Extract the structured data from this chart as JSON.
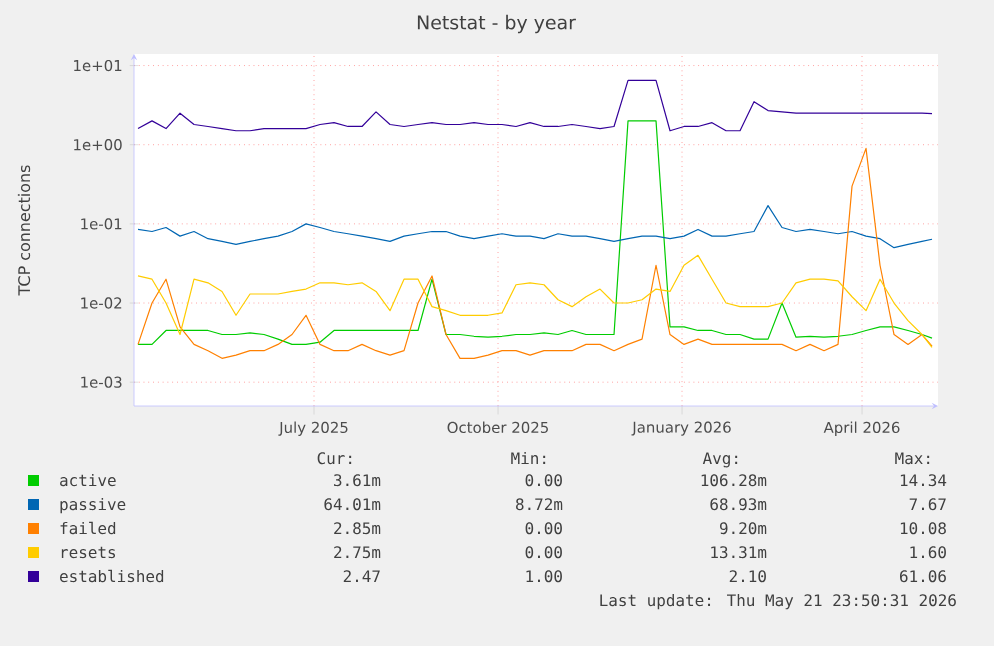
{
  "chart_data": {
    "type": "line",
    "title": "Netstat - by year",
    "ylabel": "TCP connections",
    "log": true,
    "grid": true,
    "legend": "bottom",
    "marker": "none",
    "line_style": "solid",
    "xlim": [
      "2025-04-17",
      "2026-05-24"
    ],
    "xticks": [
      {
        "value": "2025-07-16",
        "label": "July 2025"
      },
      {
        "value": "2025-10-16",
        "label": "October 2025"
      },
      {
        "value": "2026-01-16",
        "label": "January 2026"
      },
      {
        "value": "2026-04-16",
        "label": "April 2026"
      }
    ],
    "ylim": [
      0.0005,
      14
    ],
    "yticks": [
      {
        "value": 0.001,
        "label": "1e-03"
      },
      {
        "value": 0.01,
        "label": "1e-02"
      },
      {
        "value": 0.1,
        "label": "1e-01"
      },
      {
        "value": 1,
        "label": "1e+00"
      },
      {
        "value": 10,
        "label": "1e+01"
      }
    ],
    "x": [
      "2025-04-19",
      "2025-04-26",
      "2025-05-03",
      "2025-05-10",
      "2025-05-17",
      "2025-05-24",
      "2025-05-31",
      "2025-06-07",
      "2025-06-14",
      "2025-06-21",
      "2025-06-28",
      "2025-07-05",
      "2025-07-12",
      "2025-07-19",
      "2025-07-26",
      "2025-08-02",
      "2025-08-09",
      "2025-08-16",
      "2025-08-23",
      "2025-08-30",
      "2025-09-06",
      "2025-09-13",
      "2025-09-20",
      "2025-09-27",
      "2025-10-04",
      "2025-10-11",
      "2025-10-18",
      "2025-10-25",
      "2025-11-01",
      "2025-11-08",
      "2025-11-15",
      "2025-11-22",
      "2025-11-29",
      "2025-12-06",
      "2025-12-13",
      "2025-12-20",
      "2025-12-27",
      "2026-01-03",
      "2026-01-10",
      "2026-01-17",
      "2026-01-24",
      "2026-01-31",
      "2026-02-07",
      "2026-02-14",
      "2026-02-21",
      "2026-02-28",
      "2026-03-07",
      "2026-03-14",
      "2026-03-21",
      "2026-03-28",
      "2026-04-04",
      "2026-04-11",
      "2026-04-18",
      "2026-04-25",
      "2026-05-02",
      "2026-05-09",
      "2026-05-16",
      "2026-05-21"
    ],
    "series": [
      {
        "name": "active",
        "color": "#00cc00",
        "values": [
          0.003,
          0.003,
          0.0045,
          0.0045,
          0.0045,
          0.0045,
          0.004,
          0.004,
          0.0042,
          0.004,
          0.0035,
          0.003,
          0.003,
          0.0032,
          0.0045,
          0.0045,
          0.0045,
          0.0045,
          0.0045,
          0.0045,
          0.0045,
          0.02,
          0.004,
          0.004,
          0.0038,
          0.0037,
          0.0038,
          0.004,
          0.004,
          0.0042,
          0.004,
          0.0045,
          0.004,
          0.004,
          0.004,
          2.0,
          2.0,
          2.0,
          0.005,
          0.005,
          0.0045,
          0.0045,
          0.004,
          0.004,
          0.0035,
          0.0035,
          0.01,
          0.0037,
          0.0038,
          0.0037,
          0.0038,
          0.004,
          0.0045,
          0.005,
          0.005,
          0.0045,
          0.004,
          0.0036
        ]
      },
      {
        "name": "passive",
        "color": "#0066b3",
        "values": [
          0.085,
          0.08,
          0.09,
          0.07,
          0.08,
          0.065,
          0.06,
          0.055,
          0.06,
          0.065,
          0.07,
          0.08,
          0.1,
          0.09,
          0.08,
          0.075,
          0.07,
          0.065,
          0.06,
          0.07,
          0.075,
          0.08,
          0.08,
          0.07,
          0.065,
          0.07,
          0.075,
          0.07,
          0.07,
          0.065,
          0.075,
          0.07,
          0.07,
          0.065,
          0.06,
          0.065,
          0.07,
          0.07,
          0.065,
          0.07,
          0.085,
          0.07,
          0.07,
          0.075,
          0.08,
          0.17,
          0.09,
          0.08,
          0.085,
          0.08,
          0.075,
          0.08,
          0.07,
          0.065,
          0.05,
          0.055,
          0.06,
          0.064
        ]
      },
      {
        "name": "failed",
        "color": "#ff8000",
        "values": [
          0.003,
          0.01,
          0.02,
          0.005,
          0.003,
          0.0025,
          0.002,
          0.0022,
          0.0025,
          0.0025,
          0.003,
          0.004,
          0.007,
          0.003,
          0.0025,
          0.0025,
          0.003,
          0.0025,
          0.0022,
          0.0025,
          0.01,
          0.022,
          0.004,
          0.002,
          0.002,
          0.0022,
          0.0025,
          0.0025,
          0.0022,
          0.0025,
          0.0025,
          0.0025,
          0.003,
          0.003,
          0.0025,
          0.003,
          0.0035,
          0.03,
          0.004,
          0.003,
          0.0035,
          0.003,
          0.003,
          0.003,
          0.003,
          0.003,
          0.003,
          0.0025,
          0.003,
          0.0025,
          0.003,
          0.3,
          0.9,
          0.03,
          0.004,
          0.003,
          0.004,
          0.00285
        ]
      },
      {
        "name": "resets",
        "color": "#ffcc00",
        "values": [
          0.022,
          0.02,
          0.01,
          0.004,
          0.02,
          0.018,
          0.014,
          0.007,
          0.013,
          0.013,
          0.013,
          0.014,
          0.015,
          0.018,
          0.018,
          0.017,
          0.018,
          0.014,
          0.008,
          0.02,
          0.02,
          0.009,
          0.008,
          0.007,
          0.007,
          0.007,
          0.0075,
          0.017,
          0.018,
          0.017,
          0.011,
          0.009,
          0.012,
          0.015,
          0.01,
          0.01,
          0.011,
          0.015,
          0.014,
          0.03,
          0.04,
          0.02,
          0.01,
          0.009,
          0.009,
          0.009,
          0.01,
          0.018,
          0.02,
          0.02,
          0.019,
          0.012,
          0.008,
          0.02,
          0.01,
          0.006,
          0.004,
          0.00275
        ]
      },
      {
        "name": "established",
        "color": "#330099",
        "values": [
          1.6,
          2.0,
          1.6,
          2.5,
          1.8,
          1.7,
          1.6,
          1.5,
          1.5,
          1.6,
          1.6,
          1.6,
          1.6,
          1.8,
          1.9,
          1.7,
          1.7,
          2.6,
          1.8,
          1.7,
          1.8,
          1.9,
          1.8,
          1.8,
          1.9,
          1.8,
          1.8,
          1.7,
          1.9,
          1.7,
          1.7,
          1.8,
          1.7,
          1.6,
          1.7,
          6.5,
          6.5,
          6.5,
          1.5,
          1.7,
          1.7,
          1.9,
          1.5,
          1.5,
          3.5,
          2.7,
          2.6,
          2.5,
          2.5,
          2.5,
          2.5,
          2.5,
          2.5,
          2.5,
          2.5,
          2.5,
          2.5,
          2.47
        ]
      }
    ],
    "annotations": [
      "Cur:",
      "Min:",
      "Avg:",
      "Max:",
      "3.61m",
      "0.00",
      "106.28m",
      "14.34",
      "64.01m",
      "8.72m",
      "68.93m",
      "7.67",
      "2.85m",
      "0.00",
      "9.20m",
      "10.08",
      "2.75m",
      "0.00",
      "13.31m",
      "1.60",
      "2.47",
      "1.00",
      "2.10",
      "61.06",
      "Last update: Thu May 21 23:50:31 2026"
    ]
  }
}
